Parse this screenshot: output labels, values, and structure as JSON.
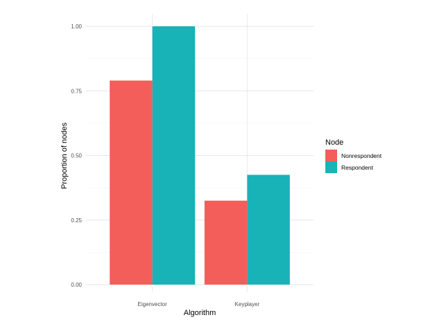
{
  "chart_data": {
    "type": "bar",
    "title": "",
    "xlabel": "Algorithm",
    "ylabel": "Proportion of nodes",
    "categories": [
      "Eigenvector",
      "Keyplayer"
    ],
    "series": [
      {
        "name": "Nonrespondent",
        "values": [
          0.79,
          0.325
        ],
        "color": "#F35E5A"
      },
      {
        "name": "Respondent",
        "values": [
          1.0,
          0.425
        ],
        "color": "#17B3B7"
      }
    ],
    "ylim": [
      0,
      1.05
    ],
    "yticks": [
      0.0,
      0.25,
      0.5,
      0.75,
      1.0
    ],
    "ytick_labels": [
      "0.00",
      "0.25",
      "0.50",
      "0.75",
      "1.00"
    ],
    "grid": true,
    "legend": {
      "title": "Node",
      "position": "right"
    }
  }
}
